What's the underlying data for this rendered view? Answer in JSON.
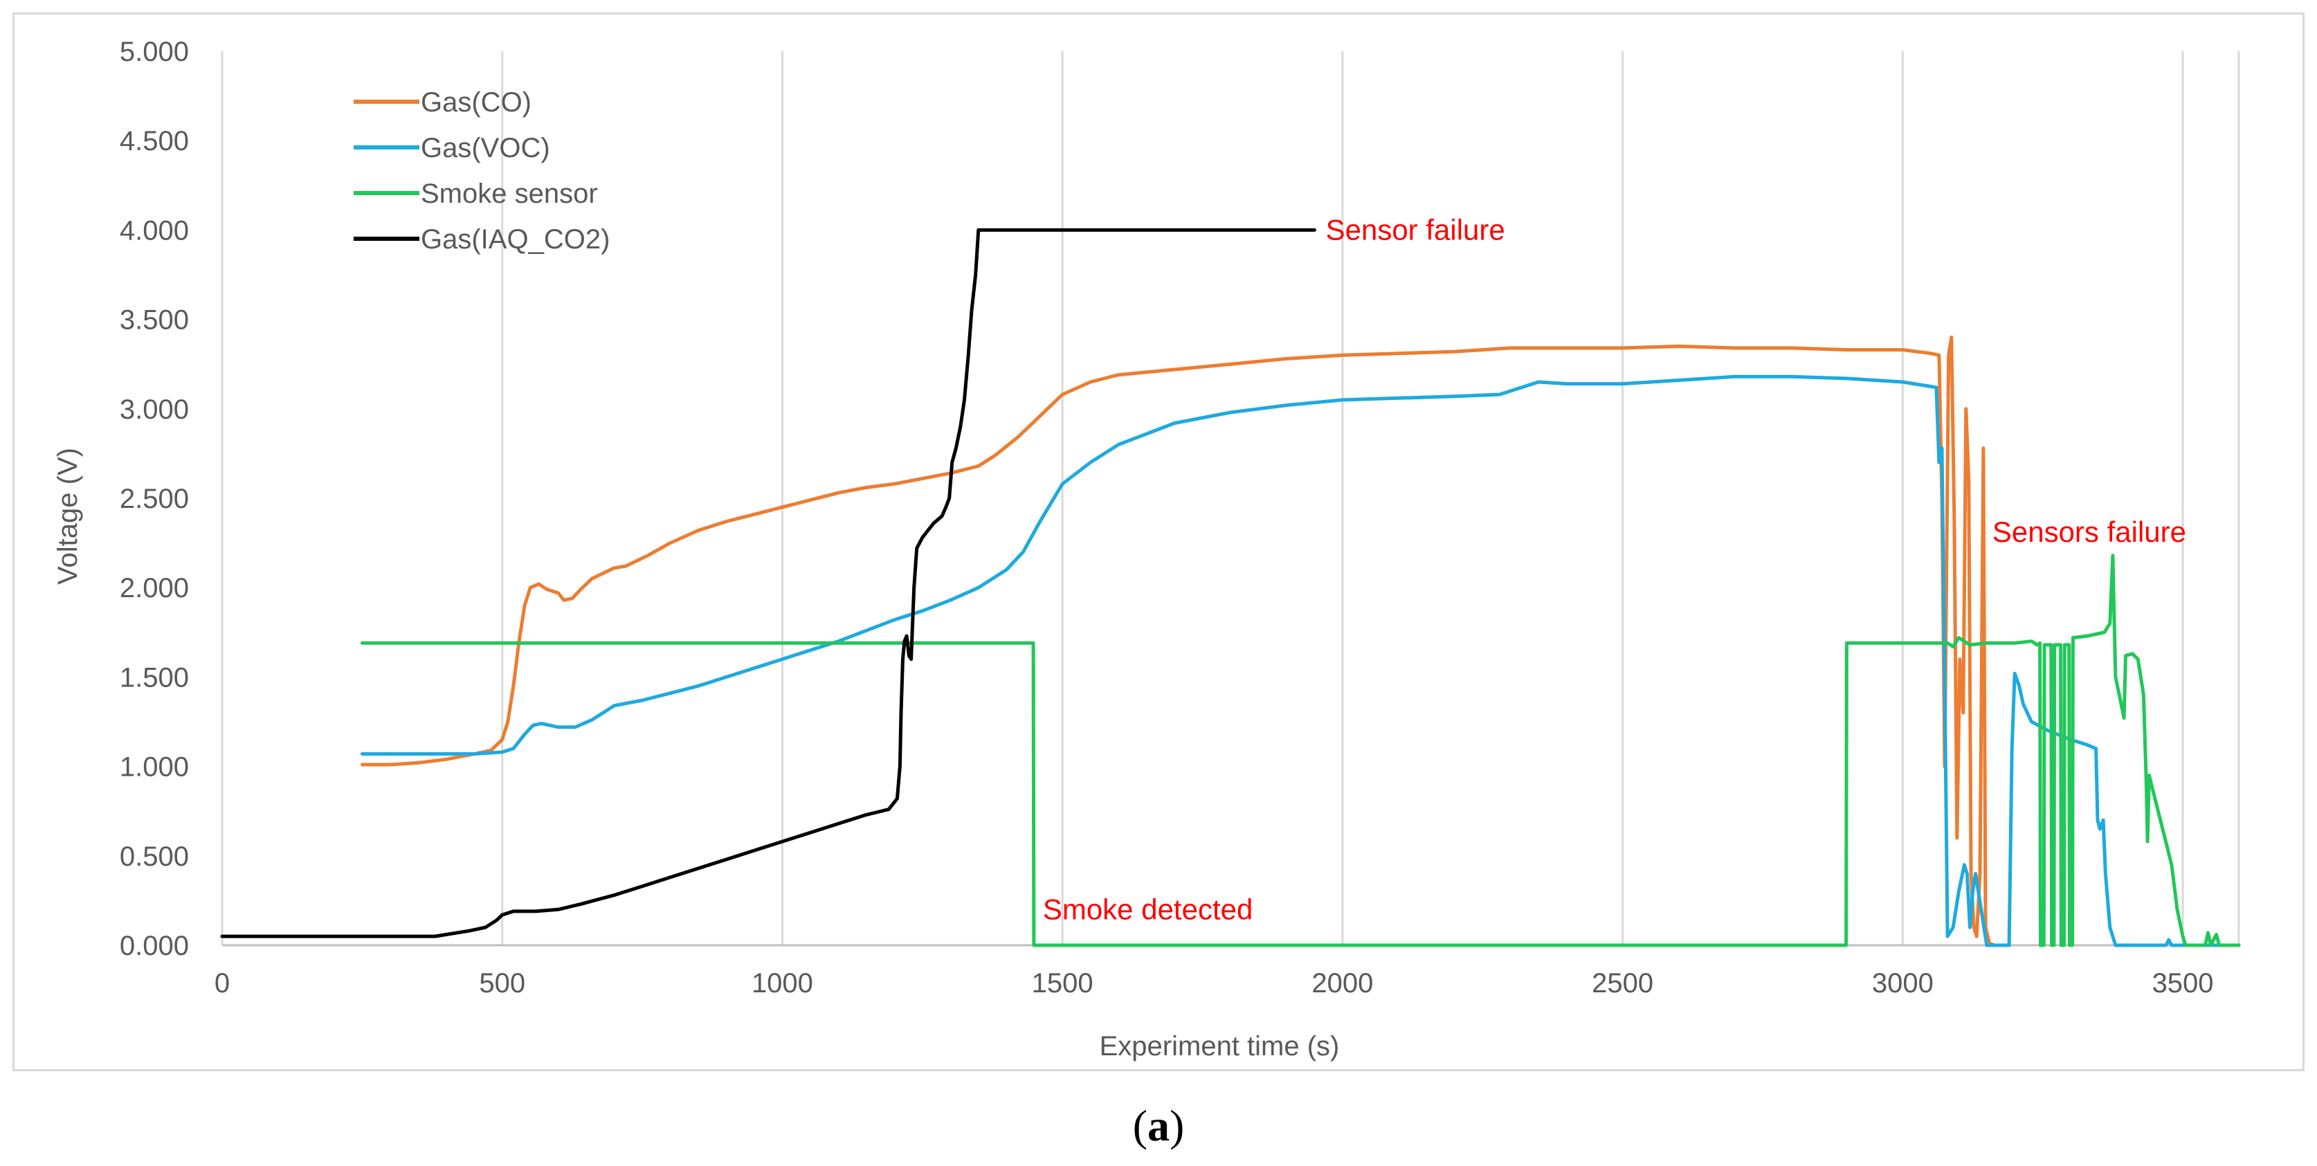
{
  "chart_data": {
    "type": "line",
    "title": "",
    "xlabel": "Experiment time (s)",
    "ylabel": "Voltage (V)",
    "xlim": [
      0,
      3600
    ],
    "ylim": [
      0,
      5
    ],
    "xticks": [
      "0",
      "500",
      "1000",
      "1500",
      "2000",
      "2500",
      "3000",
      "3500"
    ],
    "yticks": [
      "0.000",
      "0.500",
      "1.000",
      "1.500",
      "2.000",
      "2.500",
      "3.000",
      "3.500",
      "4.000",
      "4.500",
      "5.000"
    ],
    "grid": "vertical",
    "legend_position": "top-left",
    "series": [
      {
        "name": "Gas(CO)",
        "color": "#ed7d31",
        "points": [
          [
            250,
            1.01
          ],
          [
            300,
            1.01
          ],
          [
            350,
            1.02
          ],
          [
            400,
            1.04
          ],
          [
            450,
            1.07
          ],
          [
            480,
            1.09
          ],
          [
            500,
            1.15
          ],
          [
            510,
            1.25
          ],
          [
            520,
            1.45
          ],
          [
            530,
            1.7
          ],
          [
            540,
            1.9
          ],
          [
            550,
            2.0
          ],
          [
            565,
            2.02
          ],
          [
            580,
            1.99
          ],
          [
            600,
            1.97
          ],
          [
            610,
            1.93
          ],
          [
            625,
            1.94
          ],
          [
            640,
            1.99
          ],
          [
            660,
            2.05
          ],
          [
            680,
            2.08
          ],
          [
            700,
            2.11
          ],
          [
            720,
            2.12
          ],
          [
            760,
            2.18
          ],
          [
            800,
            2.25
          ],
          [
            850,
            2.32
          ],
          [
            900,
            2.37
          ],
          [
            950,
            2.41
          ],
          [
            1000,
            2.45
          ],
          [
            1050,
            2.49
          ],
          [
            1100,
            2.53
          ],
          [
            1150,
            2.56
          ],
          [
            1200,
            2.58
          ],
          [
            1250,
            2.61
          ],
          [
            1300,
            2.64
          ],
          [
            1350,
            2.68
          ],
          [
            1380,
            2.74
          ],
          [
            1420,
            2.84
          ],
          [
            1450,
            2.93
          ],
          [
            1480,
            3.02
          ],
          [
            1500,
            3.08
          ],
          [
            1550,
            3.15
          ],
          [
            1600,
            3.19
          ],
          [
            1700,
            3.22
          ],
          [
            1800,
            3.25
          ],
          [
            1900,
            3.28
          ],
          [
            2000,
            3.3
          ],
          [
            2100,
            3.31
          ],
          [
            2200,
            3.32
          ],
          [
            2300,
            3.34
          ],
          [
            2400,
            3.34
          ],
          [
            2500,
            3.34
          ],
          [
            2600,
            3.35
          ],
          [
            2700,
            3.34
          ],
          [
            2800,
            3.34
          ],
          [
            2900,
            3.33
          ],
          [
            3000,
            3.33
          ],
          [
            3050,
            3.31
          ],
          [
            3065,
            3.3
          ],
          [
            3070,
            2.5
          ],
          [
            3075,
            1.0
          ],
          [
            3082,
            3.3
          ],
          [
            3087,
            3.4
          ],
          [
            3092,
            2.4
          ],
          [
            3097,
            0.6
          ],
          [
            3102,
            1.6
          ],
          [
            3108,
            1.3
          ],
          [
            3113,
            3.0
          ],
          [
            3118,
            2.6
          ],
          [
            3122,
            0.4
          ],
          [
            3127,
            0.1
          ],
          [
            3132,
            0.05
          ],
          [
            3138,
            0.4
          ],
          [
            3144,
            2.78
          ],
          [
            3148,
            0.1
          ],
          [
            3155,
            0.01
          ],
          [
            3165,
            0.0
          ]
        ]
      },
      {
        "name": "Gas(VOC)",
        "color": "#1eaadf",
        "points": [
          [
            250,
            1.07
          ],
          [
            300,
            1.07
          ],
          [
            400,
            1.07
          ],
          [
            450,
            1.07
          ],
          [
            500,
            1.08
          ],
          [
            520,
            1.1
          ],
          [
            540,
            1.18
          ],
          [
            555,
            1.23
          ],
          [
            570,
            1.24
          ],
          [
            600,
            1.22
          ],
          [
            630,
            1.22
          ],
          [
            660,
            1.26
          ],
          [
            680,
            1.3
          ],
          [
            700,
            1.34
          ],
          [
            750,
            1.37
          ],
          [
            800,
            1.41
          ],
          [
            850,
            1.45
          ],
          [
            900,
            1.5
          ],
          [
            950,
            1.55
          ],
          [
            1000,
            1.6
          ],
          [
            1050,
            1.65
          ],
          [
            1100,
            1.7
          ],
          [
            1150,
            1.76
          ],
          [
            1200,
            1.82
          ],
          [
            1250,
            1.87
          ],
          [
            1300,
            1.93
          ],
          [
            1350,
            2.0
          ],
          [
            1400,
            2.1
          ],
          [
            1430,
            2.2
          ],
          [
            1460,
            2.37
          ],
          [
            1500,
            2.58
          ],
          [
            1550,
            2.7
          ],
          [
            1600,
            2.8
          ],
          [
            1700,
            2.92
          ],
          [
            1800,
            2.98
          ],
          [
            1900,
            3.02
          ],
          [
            2000,
            3.05
          ],
          [
            2100,
            3.06
          ],
          [
            2200,
            3.07
          ],
          [
            2280,
            3.08
          ],
          [
            2300,
            3.1
          ],
          [
            2350,
            3.15
          ],
          [
            2400,
            3.14
          ],
          [
            2500,
            3.14
          ],
          [
            2600,
            3.16
          ],
          [
            2700,
            3.18
          ],
          [
            2800,
            3.18
          ],
          [
            2900,
            3.17
          ],
          [
            3000,
            3.15
          ],
          [
            3060,
            3.12
          ],
          [
            3065,
            2.7
          ],
          [
            3070,
            2.78
          ],
          [
            3075,
            1.5
          ],
          [
            3080,
            0.05
          ],
          [
            3090,
            0.1
          ],
          [
            3100,
            0.3
          ],
          [
            3110,
            0.45
          ],
          [
            3115,
            0.4
          ],
          [
            3120,
            0.1
          ],
          [
            3125,
            0.3
          ],
          [
            3130,
            0.4
          ],
          [
            3140,
            0.2
          ],
          [
            3150,
            0.0
          ],
          [
            3190,
            0.0
          ],
          [
            3195,
            1.1
          ],
          [
            3200,
            1.52
          ],
          [
            3208,
            1.45
          ],
          [
            3215,
            1.35
          ],
          [
            3230,
            1.25
          ],
          [
            3260,
            1.2
          ],
          [
            3300,
            1.15
          ],
          [
            3330,
            1.12
          ],
          [
            3345,
            1.1
          ],
          [
            3348,
            0.7
          ],
          [
            3352,
            0.65
          ],
          [
            3358,
            0.7
          ],
          [
            3362,
            0.4
          ],
          [
            3370,
            0.1
          ],
          [
            3380,
            0.0
          ],
          [
            3400,
            0.0
          ],
          [
            3450,
            0.0
          ],
          [
            3470,
            0.0
          ],
          [
            3475,
            0.03
          ],
          [
            3480,
            0.0
          ],
          [
            3500,
            0.0
          ],
          [
            3600,
            0.0
          ]
        ]
      },
      {
        "name": "Smoke sensor",
        "color": "#22c759",
        "points": [
          [
            250,
            1.69
          ],
          [
            1448,
            1.69
          ],
          [
            1449,
            0.0
          ],
          [
            2899,
            0.0
          ],
          [
            2900,
            1.69
          ],
          [
            3080,
            1.69
          ],
          [
            3090,
            1.67
          ],
          [
            3100,
            1.72
          ],
          [
            3120,
            1.68
          ],
          [
            3150,
            1.69
          ],
          [
            3200,
            1.69
          ],
          [
            3230,
            1.7
          ],
          [
            3240,
            1.68
          ],
          [
            3245,
            1.69
          ],
          [
            3246,
            0.0
          ],
          [
            3252,
            0.0
          ],
          [
            3253,
            1.68
          ],
          [
            3265,
            1.68
          ],
          [
            3266,
            0.0
          ],
          [
            3270,
            0.0
          ],
          [
            3271,
            1.68
          ],
          [
            3282,
            1.68
          ],
          [
            3283,
            0.0
          ],
          [
            3288,
            0.0
          ],
          [
            3289,
            1.68
          ],
          [
            3297,
            1.68
          ],
          [
            3298,
            0.0
          ],
          [
            3303,
            0.0
          ],
          [
            3304,
            1.72
          ],
          [
            3330,
            1.73
          ],
          [
            3360,
            1.75
          ],
          [
            3370,
            1.8
          ],
          [
            3375,
            2.18
          ],
          [
            3380,
            1.5
          ],
          [
            3390,
            1.35
          ],
          [
            3395,
            1.27
          ],
          [
            3398,
            1.62
          ],
          [
            3410,
            1.63
          ],
          [
            3420,
            1.6
          ],
          [
            3430,
            1.4
          ],
          [
            3435,
            0.9
          ],
          [
            3437,
            0.58
          ],
          [
            3440,
            0.95
          ],
          [
            3460,
            0.7
          ],
          [
            3480,
            0.45
          ],
          [
            3490,
            0.2
          ],
          [
            3500,
            0.05
          ],
          [
            3505,
            0.0
          ],
          [
            3540,
            0.0
          ],
          [
            3545,
            0.07
          ],
          [
            3550,
            0.0
          ],
          [
            3560,
            0.06
          ],
          [
            3565,
            0.0
          ],
          [
            3600,
            0.0
          ]
        ]
      },
      {
        "name": "Gas(IAQ_CO2)",
        "color": "#000000",
        "points": [
          [
            0,
            0.05
          ],
          [
            100,
            0.05
          ],
          [
            200,
            0.05
          ],
          [
            300,
            0.05
          ],
          [
            380,
            0.05
          ],
          [
            400,
            0.06
          ],
          [
            440,
            0.08
          ],
          [
            470,
            0.1
          ],
          [
            490,
            0.14
          ],
          [
            500,
            0.17
          ],
          [
            520,
            0.19
          ],
          [
            560,
            0.19
          ],
          [
            600,
            0.2
          ],
          [
            640,
            0.23
          ],
          [
            700,
            0.28
          ],
          [
            750,
            0.33
          ],
          [
            800,
            0.38
          ],
          [
            850,
            0.43
          ],
          [
            900,
            0.48
          ],
          [
            950,
            0.53
          ],
          [
            1000,
            0.58
          ],
          [
            1050,
            0.63
          ],
          [
            1100,
            0.68
          ],
          [
            1150,
            0.73
          ],
          [
            1190,
            0.76
          ],
          [
            1205,
            0.82
          ],
          [
            1210,
            1.0
          ],
          [
            1212,
            1.3
          ],
          [
            1215,
            1.6
          ],
          [
            1218,
            1.7
          ],
          [
            1222,
            1.73
          ],
          [
            1226,
            1.62
          ],
          [
            1230,
            1.6
          ],
          [
            1235,
            2.0
          ],
          [
            1240,
            2.22
          ],
          [
            1250,
            2.28
          ],
          [
            1260,
            2.32
          ],
          [
            1270,
            2.36
          ],
          [
            1285,
            2.4
          ],
          [
            1292,
            2.45
          ],
          [
            1298,
            2.5
          ],
          [
            1303,
            2.7
          ],
          [
            1310,
            2.78
          ],
          [
            1318,
            2.9
          ],
          [
            1325,
            3.05
          ],
          [
            1332,
            3.3
          ],
          [
            1338,
            3.55
          ],
          [
            1345,
            3.75
          ],
          [
            1350,
            4.0
          ],
          [
            1360,
            4.0
          ],
          [
            1400,
            4.0
          ],
          [
            1600,
            4.0
          ],
          [
            1800,
            4.0
          ],
          [
            1950,
            4.0
          ]
        ]
      }
    ],
    "annotations": [
      {
        "text": "Sensor failure",
        "x": 1970,
        "y": 4.0
      },
      {
        "text": "Sensors failure",
        "x": 3160,
        "y": 2.31
      },
      {
        "text": "Smoke detected",
        "x": 1465,
        "y": 0.2
      }
    ]
  },
  "caption": {
    "open": "(",
    "label": "a",
    "close": ")"
  }
}
